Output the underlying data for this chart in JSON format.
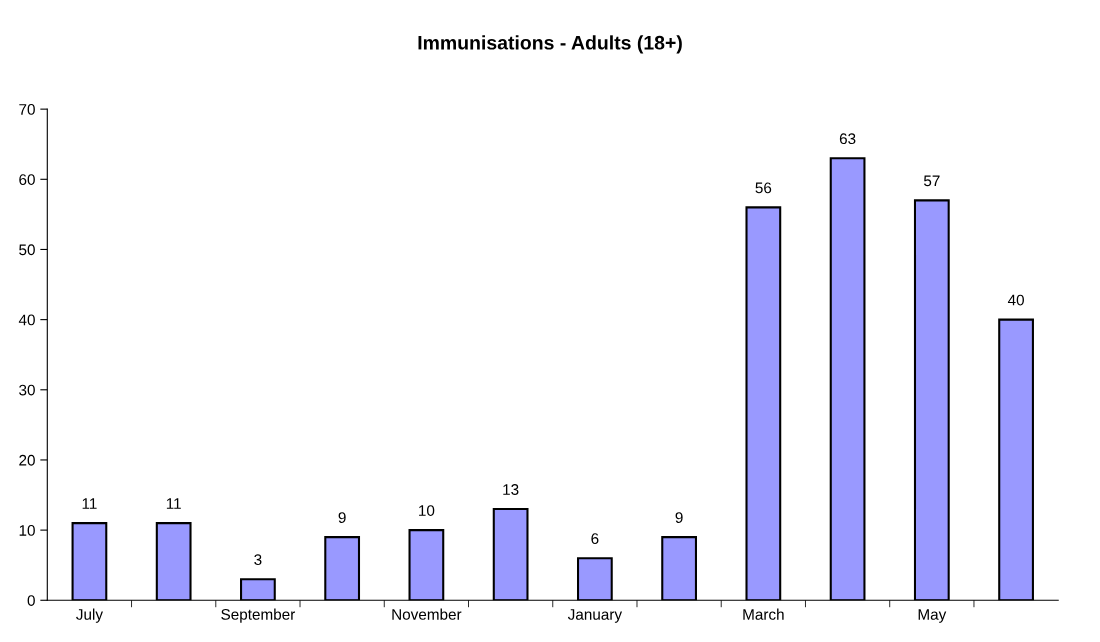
{
  "chart_data": {
    "type": "bar",
    "title": "Immunisations - Adults (18+)",
    "categories": [
      "July",
      null,
      "September",
      null,
      "November",
      null,
      "January",
      null,
      "March",
      null,
      "May",
      null
    ],
    "values": [
      11,
      11,
      3,
      9,
      10,
      13,
      6,
      9,
      56,
      63,
      57,
      40
    ],
    "color": "#9999ff",
    "ylim": [
      0,
      70
    ],
    "yticks": [
      0,
      10,
      20,
      30,
      40,
      50,
      60,
      70
    ],
    "grid": false,
    "legend": false,
    "data_labels": true
  }
}
